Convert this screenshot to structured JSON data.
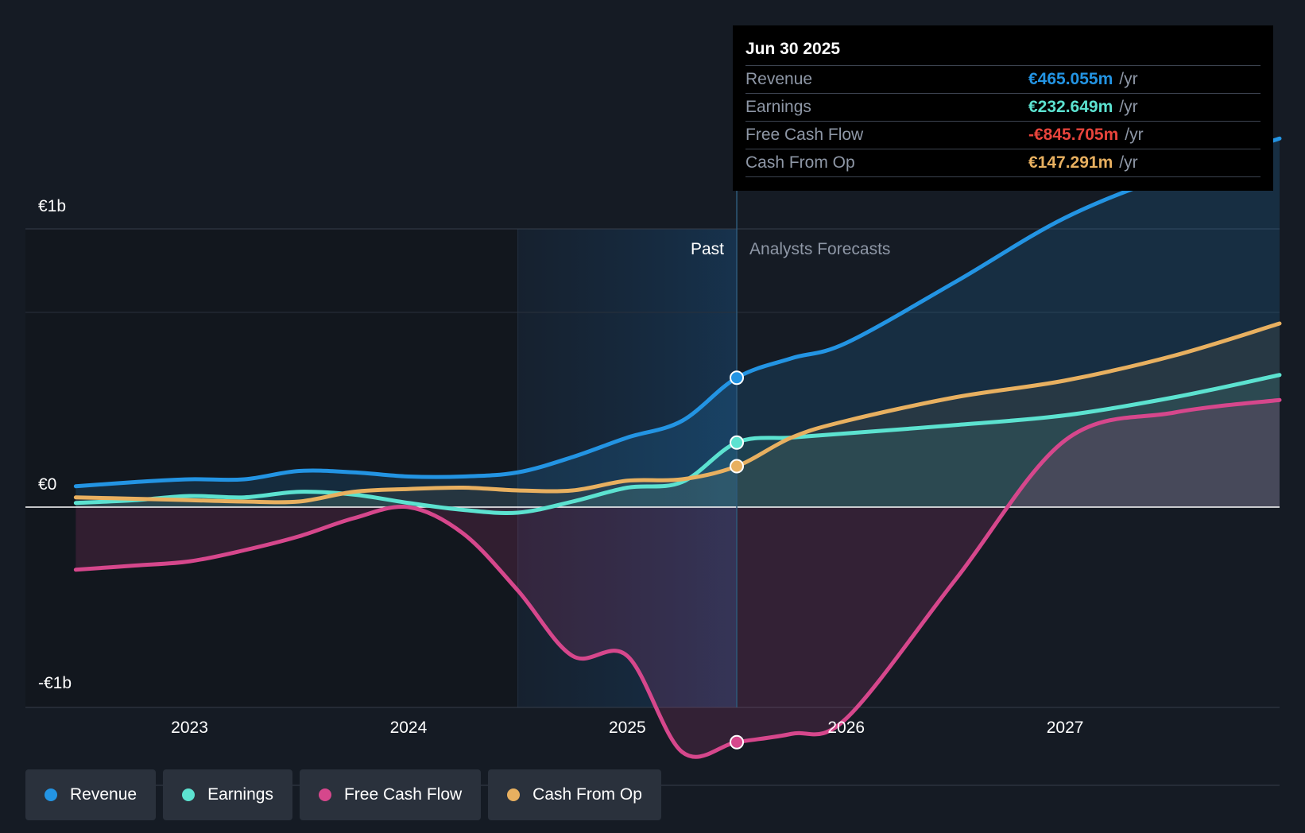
{
  "chart_data": {
    "type": "area",
    "y_axis": {
      "ticks": [
        {
          "value": 1000,
          "label": "€1b"
        },
        {
          "value": 0,
          "label": "€0"
        },
        {
          "value": -1000,
          "label": "-€1b"
        }
      ],
      "ylim": [
        -1000,
        1400
      ]
    },
    "x_axis": {
      "ticks": [
        {
          "value": 2023,
          "label": "2023"
        },
        {
          "value": 2024,
          "label": "2024"
        },
        {
          "value": 2025,
          "label": "2025"
        },
        {
          "value": 2026,
          "label": "2026"
        },
        {
          "value": 2027,
          "label": "2027"
        }
      ],
      "xlim": [
        2022.25,
        2027.98
      ]
    },
    "past_label": "Past",
    "forecast_label": "Analysts Forecasts",
    "past_region_start": 2024.5,
    "divider_x": 2025.5,
    "series": [
      {
        "name": "Revenue",
        "color": "#2394e3",
        "x": [
          2022.48,
          2022.75,
          2023.0,
          2023.25,
          2023.5,
          2023.75,
          2024.0,
          2024.25,
          2024.5,
          2024.75,
          2025.0,
          2025.25,
          2025.5,
          2025.75,
          2026.0,
          2026.5,
          2027.0,
          2027.5,
          2027.98
        ],
        "y": [
          75,
          90,
          100,
          100,
          130,
          125,
          110,
          110,
          125,
          180,
          250,
          310,
          465,
          535,
          590,
          810,
          1040,
          1200,
          1325
        ]
      },
      {
        "name": "Earnings",
        "color": "#5ce2d0",
        "x": [
          2022.48,
          2022.75,
          2023.0,
          2023.25,
          2023.5,
          2023.75,
          2024.0,
          2024.25,
          2024.5,
          2024.75,
          2025.0,
          2025.25,
          2025.5,
          2025.75,
          2026.0,
          2026.5,
          2027.0,
          2027.5,
          2027.98
        ],
        "y": [
          15,
          25,
          40,
          35,
          55,
          45,
          15,
          -10,
          -20,
          20,
          70,
          90,
          232,
          250,
          265,
          295,
          330,
          395,
          475
        ]
      },
      {
        "name": "Free Cash Flow",
        "color": "#d6478c",
        "x": [
          2022.48,
          2022.75,
          2023.0,
          2023.25,
          2023.5,
          2023.75,
          2024.0,
          2024.25,
          2024.5,
          2024.75,
          2025.0,
          2025.25,
          2025.5,
          2025.75,
          2026.0,
          2026.5,
          2027.0,
          2027.5,
          2027.98
        ],
        "y": [
          -225,
          -210,
          -195,
          -155,
          -105,
          -40,
          0,
          -95,
          -300,
          -535,
          -535,
          -880,
          -845,
          -815,
          -760,
          -260,
          240,
          340,
          385
        ]
      },
      {
        "name": "Cash From Op",
        "color": "#e8b060",
        "x": [
          2022.48,
          2022.75,
          2023.0,
          2023.25,
          2023.5,
          2023.75,
          2024.0,
          2024.25,
          2024.5,
          2024.75,
          2025.0,
          2025.25,
          2025.5,
          2025.75,
          2026.0,
          2026.5,
          2027.0,
          2027.5,
          2027.98
        ],
        "y": [
          35,
          30,
          25,
          20,
          20,
          55,
          65,
          70,
          60,
          60,
          95,
          100,
          147,
          250,
          310,
          395,
          455,
          545,
          660
        ]
      }
    ],
    "highlight_x": 2025.5
  },
  "tooltip": {
    "date": "Jun 30 2025",
    "rows": [
      {
        "label": "Revenue",
        "value": "€465.055m",
        "unit": "/yr",
        "color": "#2394e3"
      },
      {
        "label": "Earnings",
        "value": "€232.649m",
        "unit": "/yr",
        "color": "#5ce2d0"
      },
      {
        "label": "Free Cash Flow",
        "value": "-€845.705m",
        "unit": "/yr",
        "color": "#e8443c"
      },
      {
        "label": "Cash From Op",
        "value": "€147.291m",
        "unit": "/yr",
        "color": "#e8b060"
      }
    ]
  },
  "legend": [
    {
      "label": "Revenue",
      "color": "#2394e3"
    },
    {
      "label": "Earnings",
      "color": "#5ce2d0"
    },
    {
      "label": "Free Cash Flow",
      "color": "#d6478c"
    },
    {
      "label": "Cash From Op",
      "color": "#e8b060"
    }
  ]
}
